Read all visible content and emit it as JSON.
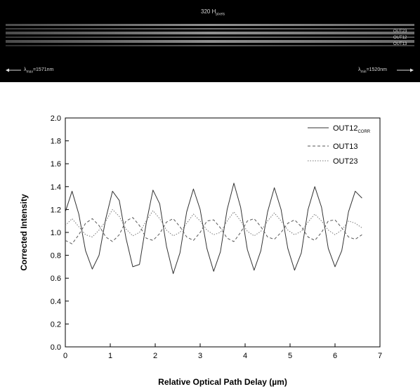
{
  "detector": {
    "pixels_label": "320 H",
    "pixels_sub": "pixels",
    "outputs": [
      "OUT23",
      "OUT12",
      "OUT13"
    ],
    "lambda_left": "λ",
    "lambda_left_sub": "max",
    "lambda_left_value": "=1571nm",
    "lambda_right": "λ",
    "lambda_right_sub": "min",
    "lambda_right_value": "=1520nm"
  },
  "chart_data": {
    "type": "line",
    "xlabel": "Relative Optical Path Delay (µm)",
    "ylabel": "Corrected Intensity",
    "xlim": [
      0,
      7
    ],
    "ylim": [
      0,
      2.0
    ],
    "xticks": [
      "0",
      "1",
      "2",
      "3",
      "4",
      "5",
      "6",
      "7"
    ],
    "yticks": [
      "0.0",
      "0.2",
      "0.4",
      "0.6",
      "0.8",
      "1.0",
      "1.2",
      "1.4",
      "1.6",
      "1.8",
      "2.0"
    ],
    "legend_position": "top-right",
    "series": [
      {
        "name": "OUT12",
        "name_sub": "CORR",
        "style": "solid",
        "color": "#333333",
        "x": [
          0.0,
          0.15,
          0.3,
          0.45,
          0.6,
          0.75,
          0.9,
          1.05,
          1.2,
          1.35,
          1.5,
          1.65,
          1.8,
          1.95,
          2.1,
          2.25,
          2.4,
          2.55,
          2.7,
          2.85,
          3.0,
          3.15,
          3.3,
          3.45,
          3.6,
          3.75,
          3.9,
          4.05,
          4.2,
          4.35,
          4.5,
          4.65,
          4.8,
          4.95,
          5.1,
          5.25,
          5.4,
          5.55,
          5.7,
          5.85,
          6.0,
          6.15,
          6.3,
          6.45,
          6.6
        ],
        "y": [
          1.18,
          1.36,
          1.16,
          0.84,
          0.68,
          0.8,
          1.12,
          1.36,
          1.28,
          0.95,
          0.7,
          0.72,
          1.08,
          1.37,
          1.25,
          0.88,
          0.64,
          0.82,
          1.18,
          1.38,
          1.2,
          0.86,
          0.66,
          0.83,
          1.2,
          1.43,
          1.22,
          0.85,
          0.67,
          0.84,
          1.18,
          1.39,
          1.2,
          0.86,
          0.67,
          0.82,
          1.2,
          1.4,
          1.22,
          0.86,
          0.7,
          0.84,
          1.18,
          1.36,
          1.3
        ]
      },
      {
        "name": "OUT13",
        "name_sub": "",
        "style": "dashed",
        "color": "#555555",
        "x": [
          0.0,
          0.15,
          0.3,
          0.45,
          0.6,
          0.75,
          0.9,
          1.05,
          1.2,
          1.35,
          1.5,
          1.65,
          1.8,
          1.95,
          2.1,
          2.25,
          2.4,
          2.55,
          2.7,
          2.85,
          3.0,
          3.15,
          3.3,
          3.45,
          3.6,
          3.75,
          3.9,
          4.05,
          4.2,
          4.35,
          4.5,
          4.65,
          4.8,
          4.95,
          5.1,
          5.25,
          5.4,
          5.55,
          5.7,
          5.85,
          6.0,
          6.15,
          6.3,
          6.45,
          6.6
        ],
        "y": [
          0.93,
          0.9,
          0.98,
          1.08,
          1.12,
          1.06,
          0.96,
          0.92,
          0.98,
          1.1,
          1.13,
          1.06,
          0.95,
          0.93,
          0.99,
          1.09,
          1.12,
          1.05,
          0.96,
          0.93,
          1.0,
          1.1,
          1.11,
          1.04,
          0.95,
          0.92,
          1.0,
          1.1,
          1.12,
          1.05,
          0.96,
          0.94,
          1.0,
          1.08,
          1.11,
          1.05,
          0.96,
          0.93,
          1.0,
          1.1,
          1.11,
          1.04,
          0.96,
          0.94,
          0.98
        ]
      },
      {
        "name": "OUT23",
        "name_sub": "",
        "style": "dotted",
        "color": "#777777",
        "x": [
          0.0,
          0.15,
          0.3,
          0.45,
          0.6,
          0.75,
          0.9,
          1.05,
          1.2,
          1.35,
          1.5,
          1.65,
          1.8,
          1.95,
          2.1,
          2.25,
          2.4,
          2.55,
          2.7,
          2.85,
          3.0,
          3.15,
          3.3,
          3.45,
          3.6,
          3.75,
          3.9,
          4.05,
          4.2,
          4.35,
          4.5,
          4.65,
          4.8,
          4.95,
          5.1,
          5.25,
          5.4,
          5.55,
          5.7,
          5.85,
          6.0,
          6.15,
          6.3,
          6.45,
          6.6
        ],
        "y": [
          1.06,
          1.12,
          1.05,
          0.98,
          0.96,
          1.02,
          1.1,
          1.2,
          1.14,
          1.03,
          0.97,
          1.0,
          1.1,
          1.19,
          1.12,
          1.02,
          0.97,
          1.0,
          1.08,
          1.16,
          1.1,
          1.02,
          0.98,
          1.0,
          1.1,
          1.18,
          1.1,
          1.01,
          0.97,
          1.01,
          1.1,
          1.17,
          1.1,
          1.02,
          0.98,
          1.01,
          1.09,
          1.16,
          1.1,
          1.02,
          0.98,
          1.02,
          1.1,
          1.08,
          1.04
        ]
      }
    ]
  }
}
